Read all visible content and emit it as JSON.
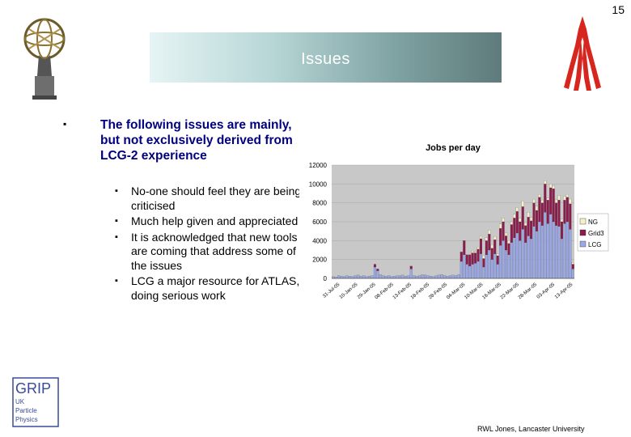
{
  "slide_number": "15",
  "title": "Issues",
  "main_point": "The following issues are mainly, but not exclusively derived from LCG-2 experience",
  "sub_points": [
    "No-one should feel they are being criticised",
    "Much help given and appreciated",
    "It is acknowledged that new tools are coming that address some of the issues",
    "LCG a major resource for ATLAS, doing serious work"
  ],
  "footer": "RWL Jones, Lancaster University",
  "grip_logo": {
    "main": "GRIP",
    "lines": [
      "UK",
      "Particle",
      "Physics"
    ]
  },
  "icons": {
    "atlas_logo": "atlas-logo-icon",
    "red_logo": "atlas-red-logo-icon"
  },
  "chart_data": {
    "type": "bar",
    "stacked": true,
    "title": "Jobs per day",
    "ylim": [
      0,
      12000
    ],
    "yticks": [
      "0",
      "2000",
      "4000",
      "6000",
      "8000",
      "10000",
      "12000"
    ],
    "xticks": [
      "31-Jul-05",
      "10-Jan-05",
      "29-Jan-05",
      "08-Feb-05",
      "13-Feb-05",
      "18-Feb-05",
      "28-Feb-05",
      "04-Mar-05",
      "10-Mar-05",
      "16-Mar-05",
      "22-Mar-05",
      "28-Mar-05",
      "03-Apr-05",
      "13-Apr-05"
    ],
    "legend_position": "right",
    "series": [
      {
        "name": "NG",
        "color": "#f5f0c8",
        "values": [
          0,
          0,
          0,
          0,
          0,
          0,
          0,
          0,
          0,
          0,
          0,
          0,
          0,
          0,
          0,
          0,
          0,
          0,
          0,
          0,
          0,
          0,
          0,
          0,
          0,
          0,
          0,
          0,
          0,
          0,
          0,
          0,
          0,
          0,
          0,
          0,
          0,
          0,
          0,
          0,
          0,
          0,
          0,
          0,
          0,
          0,
          0,
          0,
          0,
          0,
          200,
          150,
          220,
          260,
          300,
          300,
          420,
          380,
          350,
          200,
          450,
          400,
          350,
          320,
          300,
          380,
          400,
          350,
          600,
          300,
          500,
          350,
          380,
          450,
          300,
          300,
          350,
          200,
          400,
          300,
          350,
          500,
          280,
          400,
          300,
          500,
          200
        ]
      },
      {
        "name": "Grid3",
        "color": "#8b1c4c",
        "values": [
          0,
          0,
          0,
          0,
          0,
          0,
          0,
          0,
          0,
          0,
          0,
          0,
          0,
          0,
          0,
          300,
          200,
          0,
          0,
          0,
          0,
          0,
          0,
          0,
          0,
          0,
          0,
          0,
          300,
          0,
          0,
          0,
          0,
          0,
          0,
          0,
          0,
          0,
          0,
          0,
          0,
          0,
          0,
          0,
          0,
          0,
          1000,
          1500,
          1000,
          1200,
          1200,
          1100,
          1300,
          1600,
          900,
          1500,
          1700,
          1200,
          1500,
          900,
          1800,
          2000,
          1500,
          1200,
          1900,
          2100,
          2300,
          2000,
          2400,
          1800,
          2000,
          1900,
          2500,
          2200,
          2600,
          2400,
          3000,
          2500,
          2800,
          3500,
          2400,
          2800,
          1800,
          2500,
          2600,
          2700,
          500
        ]
      },
      {
        "name": "LCG",
        "color": "#9ba8e6",
        "values": [
          200,
          150,
          300,
          250,
          200,
          300,
          250,
          200,
          300,
          350,
          250,
          300,
          200,
          250,
          300,
          1200,
          800,
          400,
          300,
          250,
          300,
          200,
          250,
          300,
          300,
          350,
          250,
          300,
          1000,
          300,
          250,
          300,
          400,
          350,
          300,
          250,
          200,
          300,
          350,
          400,
          300,
          250,
          300,
          350,
          300,
          400,
          1800,
          2500,
          1500,
          1300,
          1500,
          1600,
          1800,
          2600,
          1200,
          2500,
          3000,
          2000,
          2600,
          1500,
          3500,
          4000,
          3000,
          2500,
          3800,
          4300,
          4800,
          4000,
          5200,
          3800,
          4500,
          4200,
          5500,
          5000,
          6000,
          5600,
          7000,
          5800,
          6800,
          6000,
          5600,
          5500,
          4200,
          5800,
          6000,
          5200,
          1000
        ]
      }
    ]
  }
}
